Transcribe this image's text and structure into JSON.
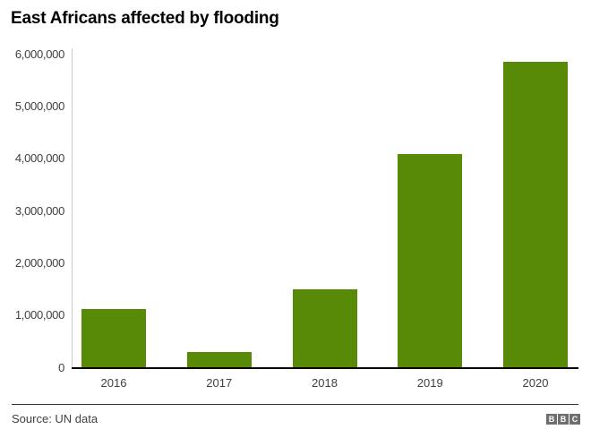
{
  "title": "East Africans affected by flooding",
  "footer": {
    "source": "Source: UN data",
    "logo_letters": [
      "B",
      "B",
      "C"
    ]
  },
  "colors": {
    "bar": "#588a08",
    "title_text": "#000000",
    "tick_text": "#404040",
    "x_axis": "#000000",
    "y_axis": "#cccccc",
    "divider": "#333333",
    "logo_box": "#6e6e6e",
    "background": "#ffffff"
  },
  "chart_data": {
    "type": "bar",
    "categories": [
      "2016",
      "2017",
      "2018",
      "2019",
      "2020"
    ],
    "values": [
      1110000,
      290000,
      1490000,
      4080000,
      5850000
    ],
    "title": "East Africans affected by flooding",
    "xlabel": "",
    "ylabel": "",
    "ylim": [
      0,
      6000000
    ],
    "ytick_step": 1000000,
    "ytick_labels": [
      "0",
      "1,000,000",
      "2,000,000",
      "3,000,000",
      "4,000,000",
      "5,000,000",
      "6,000,000"
    ],
    "grid": false,
    "legend": false,
    "source": "Source: UN data"
  }
}
